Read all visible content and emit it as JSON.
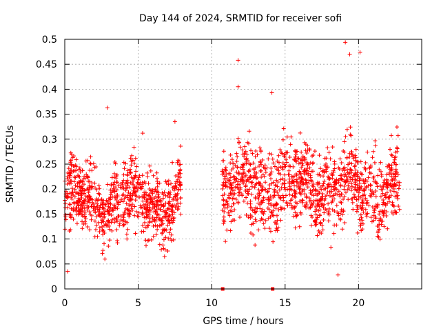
{
  "chart_data": {
    "type": "scatter",
    "title": "Day 144 of 2024, SRMTID for receiver sofi",
    "xlabel": "GPS time / hours",
    "ylabel": "SRMTID / TECUs",
    "xlim": [
      0,
      24.3
    ],
    "ylim": [
      0,
      0.5
    ],
    "x_ticks": [
      0,
      5,
      10,
      15,
      20
    ],
    "x_tick_labels": [
      "0",
      "5",
      "10",
      "15",
      "20"
    ],
    "y_ticks": [
      0,
      0.05,
      0.1,
      0.15,
      0.2,
      0.25,
      0.3,
      0.35,
      0.4,
      0.45,
      0.5
    ],
    "y_tick_labels": [
      "0",
      "0.05",
      "0.1",
      "0.15",
      "0.2",
      "0.25",
      "0.3",
      "0.35",
      "0.4",
      "0.45",
      "0.5"
    ],
    "grid": true,
    "marker": "plus",
    "color": "#ff0000",
    "clusters": [
      {
        "x_range": [
          0.0,
          7.9
        ],
        "typical_y": [
          0.07,
          0.28
        ],
        "n": 850
      },
      {
        "x_range": [
          10.7,
          22.8
        ],
        "typical_y": [
          0.08,
          0.33
        ],
        "n": 1200
      }
    ],
    "highlighted_points": [
      {
        "x": 2.9,
        "y": 0.363
      },
      {
        "x": 5.3,
        "y": 0.312
      },
      {
        "x": 7.5,
        "y": 0.335
      },
      {
        "x": 11.8,
        "y": 0.458
      },
      {
        "x": 11.8,
        "y": 0.405
      },
      {
        "x": 14.1,
        "y": 0.393
      },
      {
        "x": 19.1,
        "y": 0.494
      },
      {
        "x": 19.4,
        "y": 0.47
      },
      {
        "x": 20.1,
        "y": 0.474
      },
      {
        "x": 18.6,
        "y": 0.028
      },
      {
        "x": 0.2,
        "y": 0.035
      }
    ],
    "zero_markers": [
      {
        "x": 10.75,
        "y": 0
      },
      {
        "x": 14.15,
        "y": 0
      }
    ]
  }
}
